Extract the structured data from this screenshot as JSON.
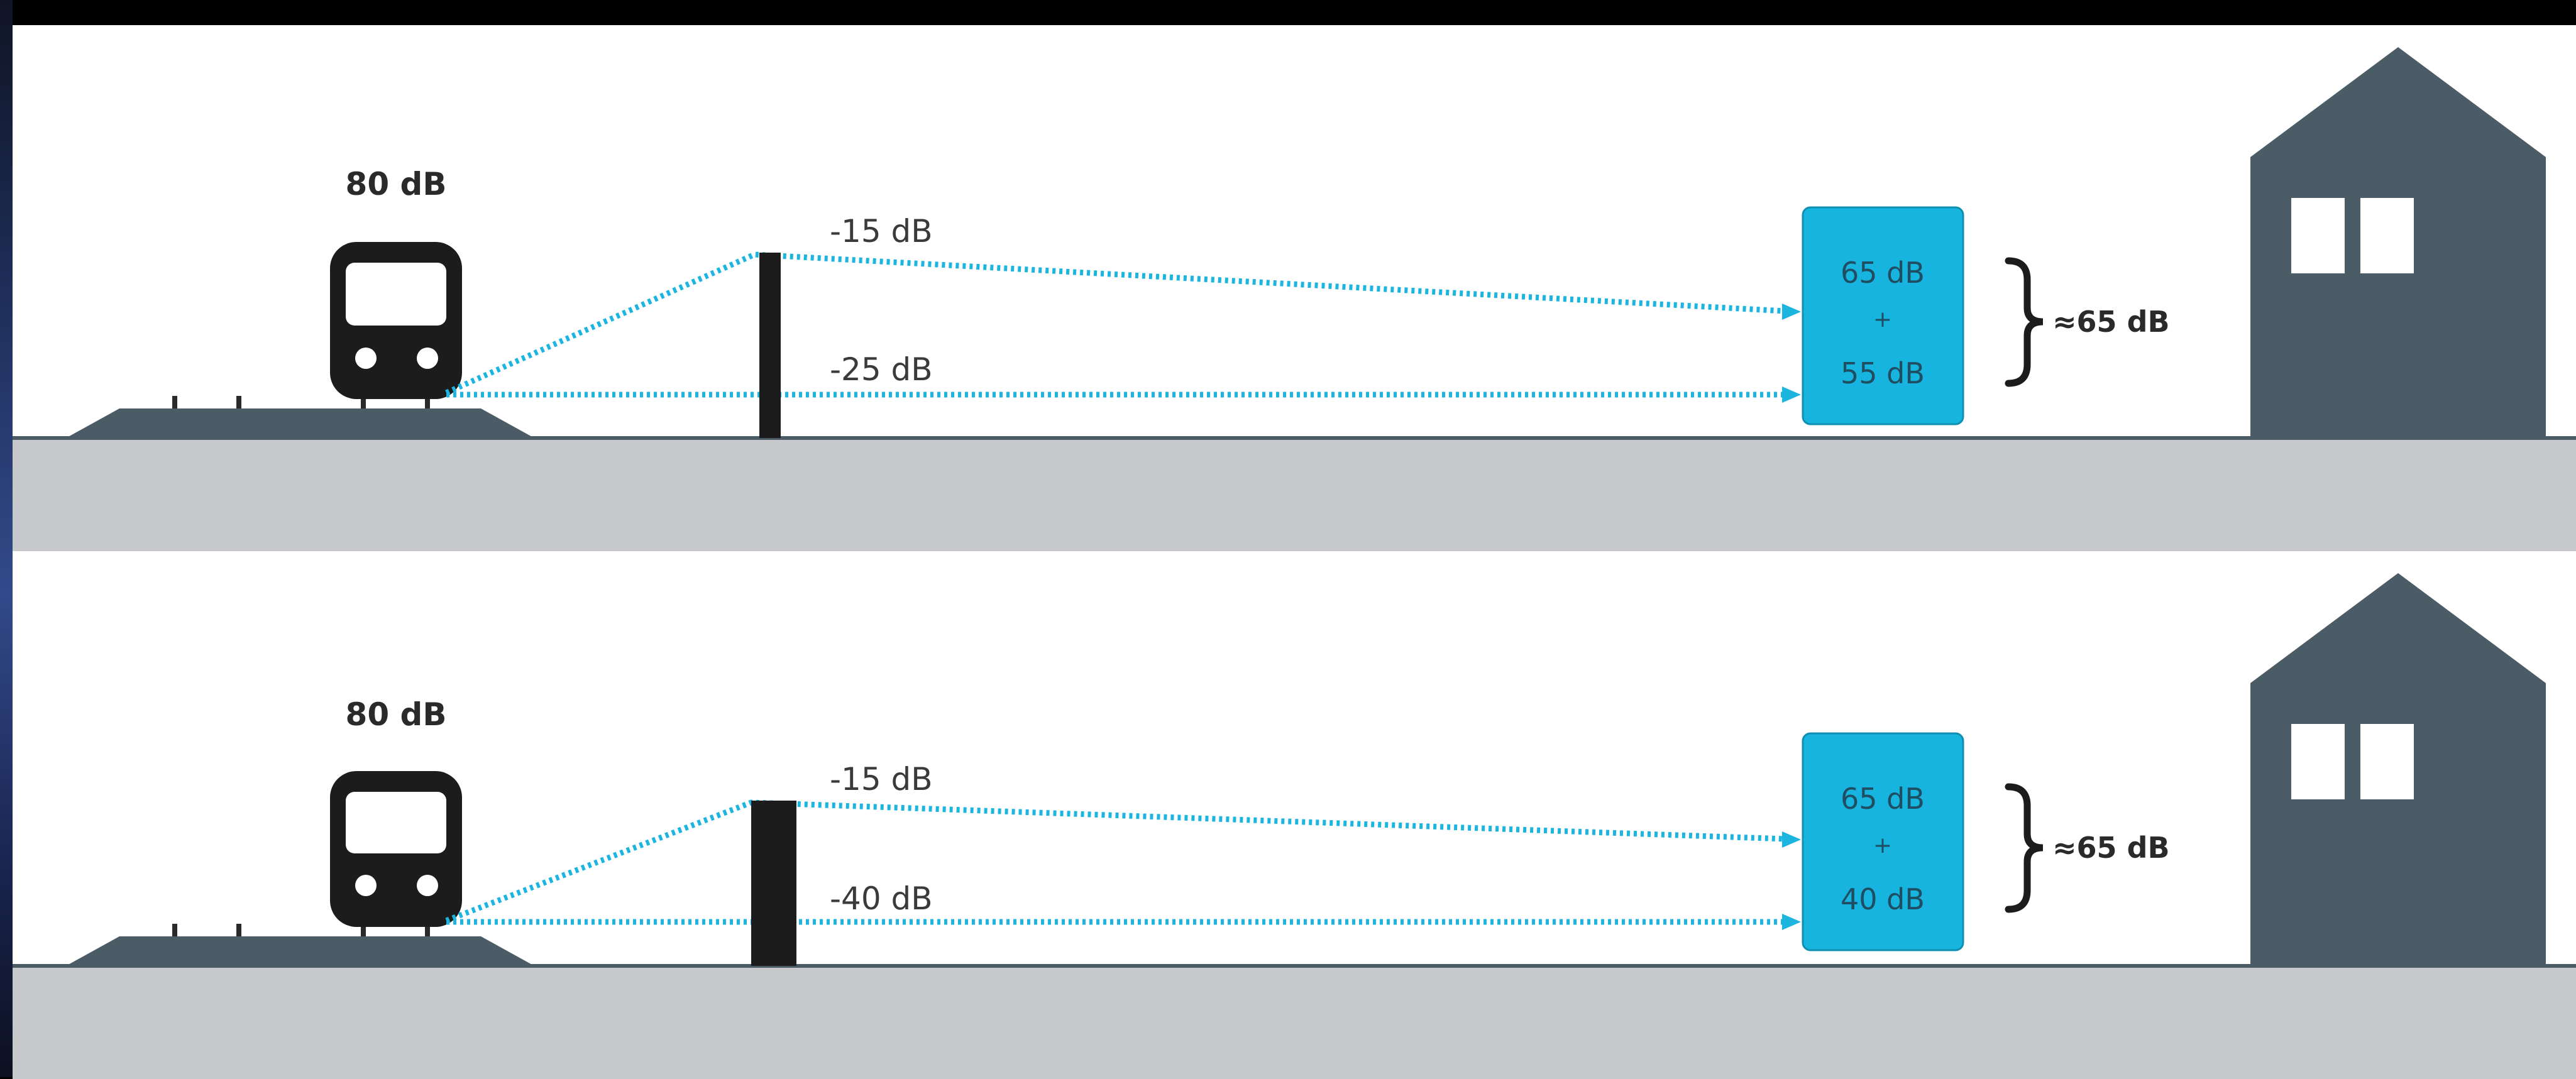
{
  "colors": {
    "background": "#ffffff",
    "ground": "#c6c8cb",
    "structure": "#4b5c66",
    "ray": "#1bb5e0",
    "receiver_box": "#16b4de",
    "train": "#1c1c1c"
  },
  "icons": [
    "train-icon",
    "house-icon",
    "barrier-wall",
    "brace-icon"
  ],
  "panels": [
    {
      "source_level": "80 dB",
      "top_path_label": "-15 dB",
      "bottom_path_label": "-25 dB",
      "receiver_top": "65 dB",
      "receiver_plus": "+",
      "receiver_bottom": "55 dB",
      "result": "≈65 dB"
    },
    {
      "source_level": "80 dB",
      "top_path_label": "-15 dB",
      "bottom_path_label": "-40 dB",
      "receiver_top": "65 dB",
      "receiver_plus": "+",
      "receiver_bottom": "40 dB",
      "result": "≈65 dB"
    }
  ]
}
